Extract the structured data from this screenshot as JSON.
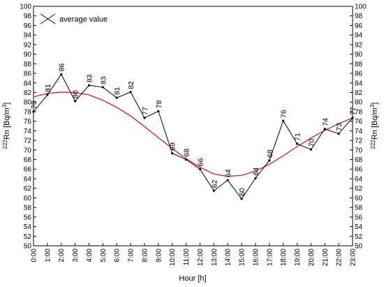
{
  "chart_data": {
    "type": "line",
    "title": "",
    "xlabel": "Hour [h]",
    "ylabel": "222Rn [Bq/m3]",
    "ylabel_parts": {
      "isotope": "222",
      "element": "Rn [Bq/m",
      "exponent": "3",
      "close": "]"
    },
    "ylim": [
      50,
      100
    ],
    "ytick_step": 2,
    "categories": [
      "0:00",
      "1:00",
      "2:00",
      "3:00",
      "4:00",
      "5:00",
      "6:00",
      "7:00",
      "8:00",
      "9:00",
      "10:00",
      "11:00",
      "12:00",
      "13:00",
      "14:00",
      "15:00",
      "16:00",
      "17:00",
      "18:00",
      "19:00",
      "20:00",
      "21:00",
      "22:00",
      "23:00"
    ],
    "series": [
      {
        "name": "",
        "color": "#000000",
        "values": [
          78,
          81,
          86,
          80,
          83,
          83,
          81,
          82,
          77,
          78,
          69,
          68,
          66,
          62,
          64,
          60,
          64,
          68,
          76,
          71,
          70,
          74,
          73,
          77
        ],
        "plotted": [
          78.0,
          81.5,
          85.8,
          80.2,
          83.5,
          83.1,
          80.9,
          82.1,
          76.7,
          78.1,
          69.3,
          68.0,
          66.0,
          61.5,
          63.7,
          59.8,
          64.1,
          67.8,
          76.1,
          71.3,
          70.1,
          74.4,
          73.4,
          76.7
        ]
      },
      {
        "name": "average value",
        "color": "#e41a1c",
        "type": "fit",
        "values": [
          81.1,
          81.8,
          82.1,
          82.0,
          81.5,
          80.4,
          78.9,
          77.1,
          74.9,
          72.6,
          70.3,
          68.2,
          66.4,
          65.0,
          64.5,
          64.7,
          65.6,
          67.0,
          68.8,
          70.7,
          72.5,
          74.1,
          75.5,
          76.7
        ]
      }
    ],
    "grid": false,
    "legend": "top-left",
    "right_axis": true
  }
}
